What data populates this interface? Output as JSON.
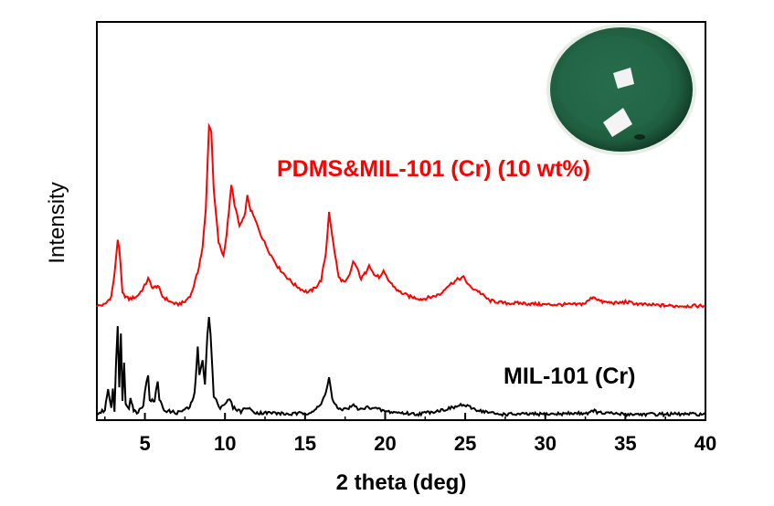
{
  "chart_data": {
    "type": "line",
    "xlabel": "2 theta (deg)",
    "ylabel": "Intensity",
    "xlim": [
      2,
      40
    ],
    "ylim": [
      0,
      1.4
    ],
    "x_ticks": [
      5,
      10,
      15,
      20,
      25,
      30,
      35,
      40
    ],
    "y_ticks": [],
    "grid": false,
    "inset": "photo of a dark green disc with white membrane fragments (top-right)",
    "series": [
      {
        "name": "PDMS&MIL-101 (Cr) (10 wt%)",
        "color": "#ff0000",
        "baseline": 0.4,
        "points": [
          [
            2,
            0.405
          ],
          [
            2.5,
            0.41
          ],
          [
            2.9,
            0.44
          ],
          [
            3.1,
            0.52
          ],
          [
            3.3,
            0.65
          ],
          [
            3.4,
            0.62
          ],
          [
            3.6,
            0.45
          ],
          [
            4.0,
            0.43
          ],
          [
            4.5,
            0.44
          ],
          [
            4.9,
            0.47
          ],
          [
            5.2,
            0.505
          ],
          [
            5.5,
            0.47
          ],
          [
            5.8,
            0.48
          ],
          [
            6.1,
            0.44
          ],
          [
            6.6,
            0.42
          ],
          [
            7.0,
            0.41
          ],
          [
            7.5,
            0.42
          ],
          [
            7.9,
            0.45
          ],
          [
            8.3,
            0.53
          ],
          [
            8.6,
            0.62
          ],
          [
            8.8,
            0.76
          ],
          [
            9.0,
            1.07
          ],
          [
            9.15,
            1.05
          ],
          [
            9.3,
            0.83
          ],
          [
            9.6,
            0.64
          ],
          [
            9.9,
            0.59
          ],
          [
            10.1,
            0.67
          ],
          [
            10.4,
            0.85
          ],
          [
            10.6,
            0.78
          ],
          [
            10.9,
            0.7
          ],
          [
            11.2,
            0.73
          ],
          [
            11.4,
            0.81
          ],
          [
            11.6,
            0.76
          ],
          [
            11.9,
            0.72
          ],
          [
            12.3,
            0.66
          ],
          [
            12.8,
            0.6
          ],
          [
            13.3,
            0.55
          ],
          [
            13.8,
            0.515
          ],
          [
            14.3,
            0.485
          ],
          [
            14.8,
            0.465
          ],
          [
            15.2,
            0.455
          ],
          [
            15.6,
            0.47
          ],
          [
            16.0,
            0.5
          ],
          [
            16.3,
            0.6
          ],
          [
            16.5,
            0.755
          ],
          [
            16.7,
            0.66
          ],
          [
            17.1,
            0.51
          ],
          [
            17.5,
            0.49
          ],
          [
            17.8,
            0.52
          ],
          [
            18.0,
            0.57
          ],
          [
            18.2,
            0.55
          ],
          [
            18.5,
            0.505
          ],
          [
            18.8,
            0.53
          ],
          [
            19.0,
            0.56
          ],
          [
            19.3,
            0.52
          ],
          [
            19.7,
            0.51
          ],
          [
            19.9,
            0.53
          ],
          [
            20.2,
            0.5
          ],
          [
            20.8,
            0.46
          ],
          [
            21.5,
            0.44
          ],
          [
            22.3,
            0.43
          ],
          [
            23.0,
            0.44
          ],
          [
            23.5,
            0.45
          ],
          [
            23.8,
            0.475
          ],
          [
            24.2,
            0.49
          ],
          [
            24.6,
            0.505
          ],
          [
            24.9,
            0.51
          ],
          [
            25.3,
            0.475
          ],
          [
            25.8,
            0.46
          ],
          [
            26.5,
            0.425
          ],
          [
            27.5,
            0.415
          ],
          [
            28.5,
            0.415
          ],
          [
            30,
            0.41
          ],
          [
            32,
            0.41
          ],
          [
            32.5,
            0.415
          ],
          [
            33.0,
            0.44
          ],
          [
            33.5,
            0.42
          ],
          [
            34.5,
            0.415
          ],
          [
            35,
            0.42
          ],
          [
            36,
            0.41
          ],
          [
            38,
            0.405
          ],
          [
            40,
            0.405
          ]
        ]
      },
      {
        "name": "MIL-101 (Cr)",
        "color": "#000000",
        "baseline": 0.0,
        "points": [
          [
            2,
            0.005
          ],
          [
            2.5,
            0.02
          ],
          [
            2.7,
            0.1
          ],
          [
            2.9,
            0.03
          ],
          [
            3.0,
            0.1
          ],
          [
            3.1,
            0.02
          ],
          [
            3.2,
            0.2
          ],
          [
            3.3,
            0.33
          ],
          [
            3.4,
            0.1
          ],
          [
            3.5,
            0.3
          ],
          [
            3.6,
            0.06
          ],
          [
            3.7,
            0.2
          ],
          [
            3.8,
            0.04
          ],
          [
            4.0,
            0.03
          ],
          [
            4.1,
            0.07
          ],
          [
            4.3,
            0.02
          ],
          [
            4.5,
            0.01
          ],
          [
            4.9,
            0.04
          ],
          [
            5.0,
            0.09
          ],
          [
            5.1,
            0.12
          ],
          [
            5.2,
            0.15
          ],
          [
            5.3,
            0.06
          ],
          [
            5.6,
            0.05
          ],
          [
            5.7,
            0.09
          ],
          [
            5.8,
            0.13
          ],
          [
            5.9,
            0.06
          ],
          [
            6.2,
            0.02
          ],
          [
            7,
            0.01
          ],
          [
            7.8,
            0.03
          ],
          [
            8.1,
            0.08
          ],
          [
            8.3,
            0.25
          ],
          [
            8.4,
            0.15
          ],
          [
            8.6,
            0.2
          ],
          [
            8.75,
            0.12
          ],
          [
            8.9,
            0.3
          ],
          [
            9.0,
            0.36
          ],
          [
            9.1,
            0.3
          ],
          [
            9.3,
            0.07
          ],
          [
            9.7,
            0.03
          ],
          [
            10.1,
            0.05
          ],
          [
            10.3,
            0.06
          ],
          [
            10.5,
            0.03
          ],
          [
            11,
            0.015
          ],
          [
            11.3,
            0.03
          ],
          [
            12,
            0.01
          ],
          [
            13,
            0.01
          ],
          [
            14,
            0.005
          ],
          [
            15.2,
            0.01
          ],
          [
            15.6,
            0.02
          ],
          [
            16.0,
            0.04
          ],
          [
            16.3,
            0.09
          ],
          [
            16.5,
            0.14
          ],
          [
            16.7,
            0.06
          ],
          [
            17.1,
            0.02
          ],
          [
            17.8,
            0.03
          ],
          [
            18.1,
            0.04
          ],
          [
            18.3,
            0.02
          ],
          [
            18.9,
            0.03
          ],
          [
            19.2,
            0.03
          ],
          [
            20,
            0.015
          ],
          [
            21,
            0.01
          ],
          [
            22,
            0.005
          ],
          [
            23.5,
            0.02
          ],
          [
            24.3,
            0.03
          ],
          [
            24.8,
            0.04
          ],
          [
            25.3,
            0.03
          ],
          [
            25.8,
            0.02
          ],
          [
            27,
            0.005
          ],
          [
            30,
            0.005
          ],
          [
            32.8,
            0.01
          ],
          [
            33,
            0.02
          ],
          [
            33.3,
            0.01
          ],
          [
            35,
            0.005
          ],
          [
            40,
            0.005
          ]
        ]
      }
    ]
  }
}
